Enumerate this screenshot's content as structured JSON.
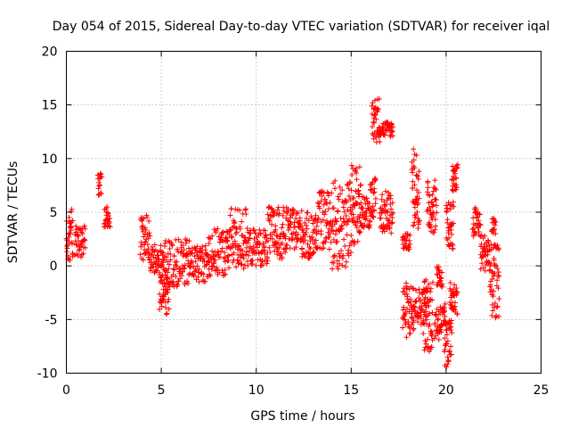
{
  "chart_data": {
    "type": "scatter",
    "title": "Day 054 of 2015, Sidereal Day-to-day VTEC variation (SDTVAR) for receiver iqal",
    "xlabel": "GPS time / hours",
    "ylabel": "SDTVAR / TECUs",
    "xlim": [
      0,
      25
    ],
    "ylim": [
      -10,
      20
    ],
    "xticks": [
      "0",
      "5",
      "10",
      "15",
      "20",
      "25"
    ],
    "yticks": [
      "-10",
      "-5",
      "0",
      "5",
      "10",
      "15",
      "20"
    ],
    "grid": true,
    "marker": "+",
    "series": [
      {
        "name": "SDTVAR",
        "color": "#ff0000",
        "clusters": [
          {
            "x": [
              0.0,
              0.35
            ],
            "y": [
              0.5,
              5.3
            ]
          },
          {
            "x": [
              0.45,
              1.0
            ],
            "y": [
              0.8,
              3.8
            ]
          },
          {
            "x": [
              1.65,
              1.85
            ],
            "y": [
              6.5,
              8.6
            ]
          },
          {
            "x": [
              2.0,
              2.3
            ],
            "y": [
              3.6,
              5.5
            ]
          },
          {
            "x": [
              3.9,
              4.4
            ],
            "y": [
              0.5,
              4.8
            ]
          },
          {
            "x": [
              4.4,
              5.2
            ],
            "y": [
              -1.0,
              2.0
            ]
          },
          {
            "x": [
              4.9,
              5.4
            ],
            "y": [
              -4.6,
              -1.0
            ]
          },
          {
            "x": [
              5.2,
              6.5
            ],
            "y": [
              -2.0,
              2.5
            ]
          },
          {
            "x": [
              6.5,
              7.5
            ],
            "y": [
              -1.5,
              2.0
            ]
          },
          {
            "x": [
              7.5,
              8.5
            ],
            "y": [
              -1.0,
              3.5
            ]
          },
          {
            "x": [
              8.5,
              9.5
            ],
            "y": [
              -0.5,
              5.5
            ]
          },
          {
            "x": [
              9.5,
              10.6
            ],
            "y": [
              0.0,
              3.5
            ]
          },
          {
            "x": [
              10.6,
              11.6
            ],
            "y": [
              0.5,
              5.5
            ]
          },
          {
            "x": [
              11.6,
              12.4
            ],
            "y": [
              1.5,
              5.3
            ]
          },
          {
            "x": [
              12.4,
              13.2
            ],
            "y": [
              0.5,
              5.0
            ]
          },
          {
            "x": [
              13.2,
              14.0
            ],
            "y": [
              1.5,
              7.0
            ]
          },
          {
            "x": [
              14.0,
              15.0
            ],
            "y": [
              -0.5,
              8.0
            ]
          },
          {
            "x": [
              15.0,
              15.5
            ],
            "y": [
              2.0,
              9.5
            ]
          },
          {
            "x": [
              15.5,
              16.0
            ],
            "y": [
              3.5,
              6.5
            ]
          },
          {
            "x": [
              16.0,
              16.3
            ],
            "y": [
              4.5,
              8.2
            ]
          },
          {
            "x": [
              16.1,
              16.5
            ],
            "y": [
              11.5,
              15.8
            ]
          },
          {
            "x": [
              16.5,
              17.2
            ],
            "y": [
              12.0,
              13.5
            ]
          },
          {
            "x": [
              16.5,
              17.2
            ],
            "y": [
              3.0,
              7.0
            ]
          },
          {
            "x": [
              17.7,
              18.3
            ],
            "y": [
              -6.8,
              -1.5
            ]
          },
          {
            "x": [
              17.7,
              18.1
            ],
            "y": [
              1.5,
              3.0
            ]
          },
          {
            "x": [
              18.2,
              18.6
            ],
            "y": [
              3.5,
              11.0
            ]
          },
          {
            "x": [
              18.3,
              19.0
            ],
            "y": [
              -5.5,
              -2.0
            ]
          },
          {
            "x": [
              18.8,
              19.3
            ],
            "y": [
              -8.0,
              -1.0
            ]
          },
          {
            "x": [
              19.0,
              19.5
            ],
            "y": [
              3.0,
              8.0
            ]
          },
          {
            "x": [
              19.4,
              20.0
            ],
            "y": [
              -7.0,
              -3.5
            ]
          },
          {
            "x": [
              19.5,
              19.8
            ],
            "y": [
              -2.0,
              0.0
            ]
          },
          {
            "x": [
              19.9,
              20.3
            ],
            "y": [
              -9.5,
              -5.0
            ]
          },
          {
            "x": [
              20.0,
              20.4
            ],
            "y": [
              1.5,
              6.0
            ]
          },
          {
            "x": [
              20.2,
              20.6
            ],
            "y": [
              -4.5,
              -1.5
            ]
          },
          {
            "x": [
              20.3,
              20.6
            ],
            "y": [
              6.5,
              9.5
            ]
          },
          {
            "x": [
              21.4,
              21.8
            ],
            "y": [
              2.5,
              5.5
            ]
          },
          {
            "x": [
              21.8,
              22.3
            ],
            "y": [
              -0.5,
              3.0
            ]
          },
          {
            "x": [
              22.3,
              22.8
            ],
            "y": [
              -5.0,
              2.0
            ]
          },
          {
            "x": [
              22.4,
              22.6
            ],
            "y": [
              3.0,
              4.5
            ]
          }
        ]
      }
    ]
  }
}
